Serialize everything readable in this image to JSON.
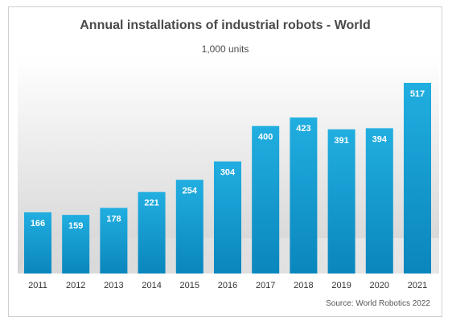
{
  "colors": {
    "bar_top": "#21aee0",
    "bar_bottom": "#0a86bd",
    "label_text": "#ffffff",
    "axis_text": "#333333"
  },
  "chart_data": {
    "type": "bar",
    "title": "Annual installations of industrial robots - World",
    "subtitle": "1,000 units",
    "source": "Source: World Robotics 2022",
    "xlabel": "",
    "ylabel": "",
    "categories": [
      "2011",
      "2012",
      "2013",
      "2014",
      "2015",
      "2016",
      "2017",
      "2018",
      "2019",
      "2020",
      "2021"
    ],
    "values": [
      166,
      159,
      178,
      221,
      254,
      304,
      400,
      423,
      391,
      394,
      517
    ],
    "ylim": [
      0,
      517
    ],
    "grid": false,
    "legend": "none"
  }
}
